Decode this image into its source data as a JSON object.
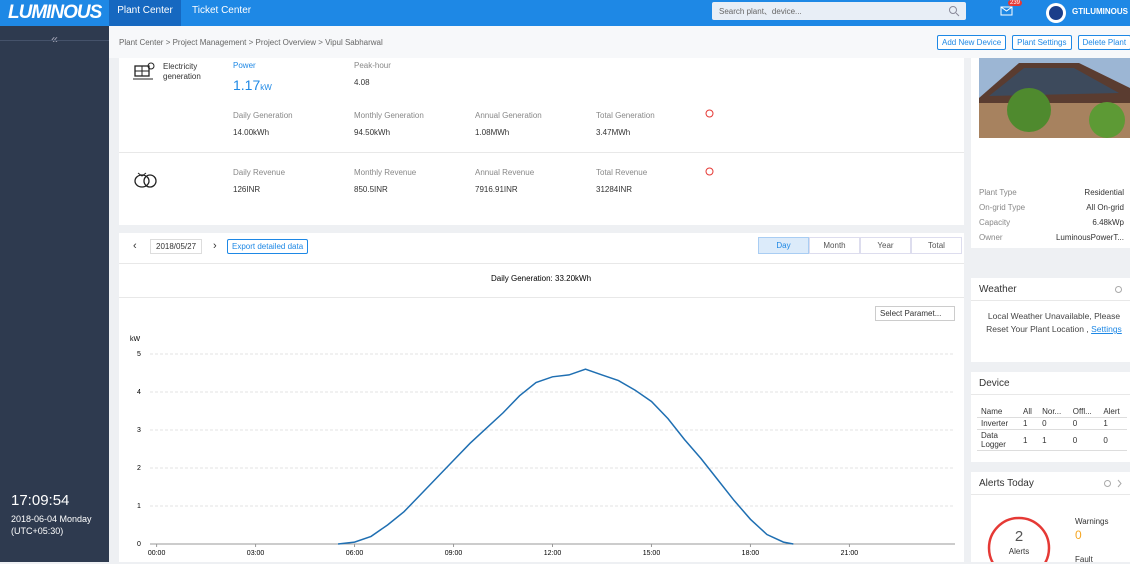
{
  "header": {
    "logo": "LUMINOUS",
    "nav": [
      "Plant Center",
      "Ticket Center"
    ],
    "search": "Search plant、device...",
    "badge": "239",
    "user": "GTILUMINOUS"
  },
  "sidebar": {
    "collapse": "«",
    "time": "17:09:54",
    "date": "2018-06-04 Monday",
    "timezone": "(UTC+05:30)"
  },
  "breadcrumb": "Plant Center > Project Management > Project Overview > Vipul Sabharwal",
  "actions": [
    "Add New Device",
    "Plant Settings",
    "Delete Plant"
  ],
  "summary": {
    "generation_label": "Electricity generation",
    "power_label": "Power",
    "power_value": "1.17",
    "power_unit": "kW",
    "peak_label": "Peak-hour",
    "peak_value": "4.08",
    "generation": [
      {
        "label": "Daily Generation",
        "value": "14.00kWh"
      },
      {
        "label": "Monthly Generation",
        "value": "94.50kWh"
      },
      {
        "label": "Annual Generation",
        "value": "1.08MWh"
      },
      {
        "label": "Total Generation",
        "value": "3.47MWh"
      }
    ],
    "revenue": [
      {
        "label": "Daily Revenue",
        "value": "126INR"
      },
      {
        "label": "Monthly Revenue",
        "value": "850.5INR"
      },
      {
        "label": "Annual Revenue",
        "value": "7916.91INR"
      },
      {
        "label": "Total Revenue",
        "value": "31284INR"
      }
    ]
  },
  "toolbar": {
    "prev": "‹",
    "date": "2018/05/27",
    "next": "›",
    "export": "Export detailed data",
    "tabs": [
      "Day",
      "Month",
      "Year",
      "Total"
    ],
    "select": "Select Paramet..."
  },
  "chart_data": {
    "type": "line",
    "title": "Daily Generation: 33.20kWh",
    "y_label": "kW",
    "color": "#1f6fb2",
    "x": [
      5.5,
      6.0,
      6.5,
      7.0,
      7.5,
      8.0,
      8.5,
      9.0,
      9.5,
      10.0,
      10.5,
      11.0,
      11.5,
      12.0,
      12.5,
      13.0,
      13.5,
      14.0,
      14.5,
      15.0,
      15.5,
      16.0,
      16.5,
      17.0,
      17.5,
      18.0,
      18.5,
      19.0,
      19.3
    ],
    "values": [
      0,
      0.05,
      0.2,
      0.5,
      0.85,
      1.3,
      1.75,
      2.2,
      2.65,
      3.05,
      3.45,
      3.9,
      4.25,
      4.4,
      4.45,
      4.6,
      4.45,
      4.3,
      4.05,
      3.75,
      3.3,
      2.75,
      2.25,
      1.7,
      1.15,
      0.65,
      0.25,
      0.05,
      0
    ],
    "xlim": [
      -0.2,
      24.2
    ],
    "xticks": [
      {
        "value": 0,
        "label": "00:00"
      },
      {
        "value": 3,
        "label": "03:00"
      },
      {
        "value": 6,
        "label": "06:00"
      },
      {
        "value": 9,
        "label": "09:00"
      },
      {
        "value": 12,
        "label": "12:00"
      },
      {
        "value": 15,
        "label": "15:00"
      },
      {
        "value": 18,
        "label": "18:00"
      },
      {
        "value": 21,
        "label": "21:00"
      }
    ],
    "ylim": [
      0,
      5
    ],
    "yticks": [
      0,
      1,
      2,
      3,
      4,
      5
    ],
    "grid": true
  },
  "plant_info": [
    [
      "Plant Type",
      "Residential"
    ],
    [
      "On-grid Type",
      "All On-grid"
    ],
    [
      "Capacity",
      "6.48kWp"
    ],
    [
      "Owner",
      "LuminousPowerT..."
    ]
  ],
  "weather": {
    "title": "Weather",
    "message": "Local Weather Unavailable, Please Reset Your Plant Location ,",
    "link": "Settings"
  },
  "device": {
    "title": "Device",
    "headers": [
      "Name",
      "All",
      "Nor...",
      "Offl...",
      "Alert"
    ],
    "rows": [
      [
        "Inverter",
        "1",
        "0",
        "0",
        "1"
      ],
      [
        "Data Logger",
        "1",
        "1",
        "0",
        "0"
      ]
    ]
  },
  "alerts": {
    "title": "Alerts Today",
    "count": "2",
    "label": "Alerts",
    "warnings_label": "Warnings",
    "warnings": "0",
    "fault_label": "Fault"
  }
}
